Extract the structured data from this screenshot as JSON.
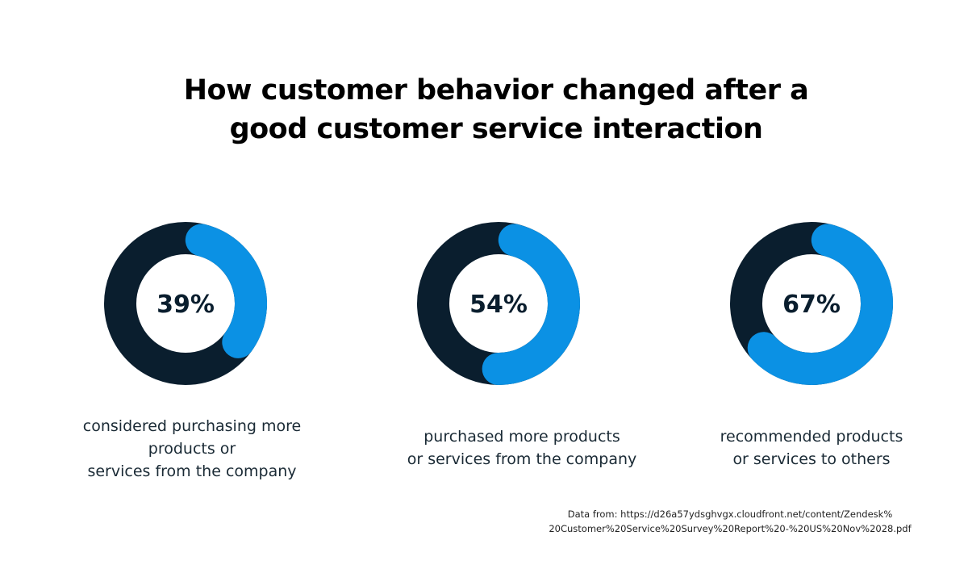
{
  "chart_data": {
    "type": "pie",
    "title": "How customer behavior changed after a good customer service interaction",
    "title_lines": [
      "How customer behavior changed after a",
      "good customer service interaction"
    ],
    "colors": {
      "value": "#0b91e4",
      "remainder": "#0a1e2e"
    },
    "items": [
      {
        "value": 39,
        "label": "39%",
        "caption": [
          "considered purchasing more",
          "products or",
          "services from the company"
        ]
      },
      {
        "value": 54,
        "label": "54%",
        "caption": [
          "purchased more products",
          "or services from the company"
        ]
      },
      {
        "value": 67,
        "label": "67%",
        "caption": [
          "recommended products",
          "or services to others"
        ]
      }
    ],
    "source_lines": [
      "Data from: https://d26a57ydsghvgx.cloudfront.net/content/Zendesk%",
      "20Customer%20Service%20Survey%20Report%20-%20US%20Nov%2028.pdf"
    ]
  }
}
